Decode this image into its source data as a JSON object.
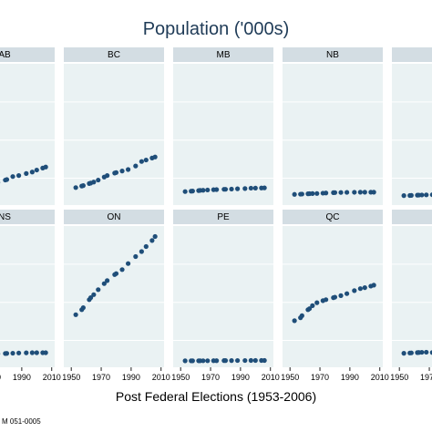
{
  "chart_data": {
    "type": "scatter",
    "title": "Population ('000s)",
    "xlabel": "Post Federal Elections (1953-2006)",
    "ylabel": "",
    "source_note": "M 051-0005",
    "x_ticks": [
      1950,
      1970,
      1990,
      2010
    ],
    "xlim": [
      1945,
      2012
    ],
    "ylim": [
      0,
      13000
    ],
    "grid": true,
    "facets": [
      {
        "label": "AB",
        "series": [
          {
            "x": [
              1953,
              1957,
              1958,
              1962,
              1963,
              1965,
              1968,
              1972,
              1974,
              1979,
              1980,
              1984,
              1988,
              1993,
              1997,
              2000,
              2004,
              2006
            ],
            "y": [
              1000,
              1100,
              1150,
              1300,
              1350,
              1400,
              1500,
              1650,
              1700,
              1950,
              2000,
              2300,
              2400,
              2600,
              2750,
              2950,
              3150,
              3250
            ]
          }
        ]
      },
      {
        "label": "BC",
        "series": [
          {
            "x": [
              1953,
              1957,
              1958,
              1962,
              1963,
              1965,
              1968,
              1972,
              1974,
              1979,
              1980,
              1984,
              1988,
              1993,
              1997,
              2000,
              2004,
              2006
            ],
            "y": [
              1200,
              1350,
              1400,
              1600,
              1650,
              1750,
              1950,
              2250,
              2400,
              2650,
              2700,
              2850,
              3000,
              3350,
              3800,
              3950,
              4150,
              4250
            ]
          }
        ]
      },
      {
        "label": "MB",
        "series": [
          {
            "x": [
              1953,
              1957,
              1958,
              1962,
              1963,
              1965,
              1968,
              1972,
              1974,
              1979,
              1980,
              1984,
              1988,
              1993,
              1997,
              2000,
              2004,
              2006
            ],
            "y": [
              800,
              840,
              850,
              900,
              920,
              930,
              960,
              990,
              1000,
              1030,
              1030,
              1050,
              1080,
              1100,
              1140,
              1150,
              1160,
              1170
            ]
          }
        ]
      },
      {
        "label": "NB",
        "series": [
          {
            "x": [
              1953,
              1957,
              1958,
              1962,
              1963,
              1965,
              1968,
              1972,
              1974,
              1979,
              1980,
              1984,
              1988,
              1993,
              1997,
              2000,
              2004,
              2006
            ],
            "y": [
              520,
              540,
              550,
              580,
              590,
              600,
              610,
              640,
              660,
              690,
              700,
              710,
              720,
              730,
              740,
              740,
              740,
              740
            ]
          }
        ]
      },
      {
        "label": "",
        "series": [
          {
            "x": [
              1953,
              1957,
              1958,
              1962,
              1963,
              1965,
              1968,
              1972,
              1974,
              1979,
              1980,
              1984,
              1988,
              1993,
              1997,
              2000,
              2004,
              2006
            ],
            "y": [
              400,
              410,
              420,
              440,
              450,
              460,
              470,
              480,
              490,
              500,
              510,
              520,
              530,
              540,
              540,
              540,
              530,
              520
            ]
          }
        ]
      },
      {
        "label": "NS",
        "series": [
          {
            "x": [
              1953,
              1957,
              1958,
              1962,
              1963,
              1965,
              1968,
              1972,
              1974,
              1979,
              1980,
              1984,
              1988,
              1993,
              1997,
              2000,
              2004,
              2006
            ],
            "y": [
              650,
              680,
              690,
              720,
              740,
              750,
              760,
              780,
              800,
              830,
              840,
              860,
              880,
              900,
              910,
              910,
              910,
              910
            ]
          }
        ]
      },
      {
        "label": "ON",
        "series": [
          {
            "x": [
              1953,
              1957,
              1958,
              1962,
              1963,
              1965,
              1968,
              1972,
              1974,
              1979,
              1980,
              1984,
              1988,
              1993,
              1997,
              2000,
              2004,
              2006
            ],
            "y": [
              4700,
              5200,
              5400,
              6200,
              6400,
              6700,
              7200,
              7800,
              8100,
              8700,
              8800,
              9200,
              9800,
              10500,
              11000,
              11500,
              12100,
              12500
            ]
          }
        ]
      },
      {
        "label": "PE",
        "series": [
          {
            "x": [
              1953,
              1957,
              1958,
              1962,
              1963,
              1965,
              1968,
              1972,
              1974,
              1979,
              1980,
              1984,
              1988,
              1993,
              1997,
              2000,
              2004,
              2006
            ],
            "y": [
              100,
              100,
              100,
              105,
              105,
              108,
              110,
              112,
              115,
              122,
              123,
              126,
              130,
              132,
              135,
              136,
              138,
              138
            ]
          }
        ]
      },
      {
        "label": "QC",
        "series": [
          {
            "x": [
              1953,
              1957,
              1958,
              1962,
              1963,
              1965,
              1968,
              1972,
              1974,
              1979,
              1980,
              1984,
              1988,
              1993,
              1997,
              2000,
              2004,
              2006
            ],
            "y": [
              4100,
              4400,
              4600,
              5200,
              5300,
              5600,
              5900,
              6100,
              6200,
              6400,
              6450,
              6600,
              6800,
              7100,
              7300,
              7400,
              7550,
              7650
            ]
          }
        ]
      },
      {
        "label": "",
        "series": [
          {
            "x": [
              1953,
              1957,
              1958,
              1962,
              1963,
              1965,
              1968,
              1972,
              1974,
              1979,
              1980,
              1984,
              1988,
              1993,
              1997,
              2000,
              2004,
              2006
            ],
            "y": [
              850,
              880,
              890,
              920,
              930,
              950,
              960,
              930,
              910,
              960,
              970,
              990,
              1000,
              1010,
              1020,
              1010,
              1000,
              990
            ]
          }
        ]
      }
    ]
  }
}
